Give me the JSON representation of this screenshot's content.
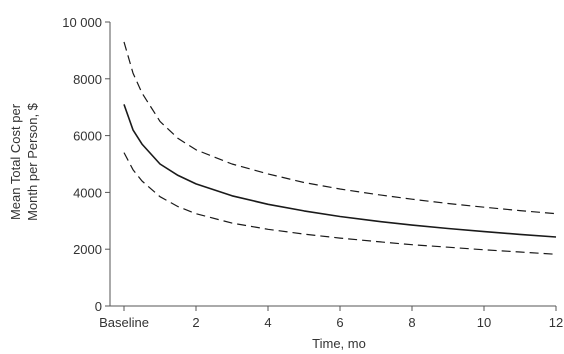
{
  "chart_data": {
    "type": "line",
    "title": "",
    "xlabel": "Time, mo",
    "ylabel_lines": [
      "Mean Total Cost per",
      "Month per Person, $"
    ],
    "xlim": [
      0,
      12
    ],
    "ylim": [
      0,
      10000
    ],
    "x_ticks": [
      0,
      2,
      4,
      6,
      8,
      10,
      12
    ],
    "x_tick_labels": [
      "Baseline",
      "2",
      "4",
      "6",
      "8",
      "10",
      "12"
    ],
    "y_ticks": [
      0,
      2000,
      4000,
      6000,
      8000,
      10000
    ],
    "y_tick_labels": [
      "0",
      "2000",
      "4000",
      "6000",
      "8000",
      "10 000"
    ],
    "grid": false,
    "series": [
      {
        "style": "solid",
        "x": [
          0,
          0.25,
          0.5,
          1,
          1.5,
          2,
          3,
          4,
          5,
          6,
          7,
          8,
          9,
          10,
          11,
          12
        ],
        "values": [
          7100,
          6200,
          5700,
          5000,
          4600,
          4300,
          3880,
          3580,
          3350,
          3150,
          2990,
          2850,
          2730,
          2620,
          2520,
          2430
        ]
      },
      {
        "style": "dashed",
        "x": [
          0,
          0.25,
          0.5,
          1,
          1.5,
          2,
          3,
          4,
          5,
          6,
          7,
          8,
          9,
          10,
          11,
          12
        ],
        "values": [
          9300,
          8200,
          7500,
          6500,
          5900,
          5500,
          5000,
          4650,
          4350,
          4120,
          3930,
          3760,
          3610,
          3480,
          3360,
          3250
        ]
      },
      {
        "style": "dashed",
        "x": [
          0,
          0.25,
          0.5,
          1,
          1.5,
          2,
          3,
          4,
          5,
          6,
          7,
          8,
          9,
          10,
          11,
          12
        ],
        "values": [
          5400,
          4800,
          4400,
          3850,
          3500,
          3250,
          2920,
          2700,
          2530,
          2390,
          2270,
          2160,
          2070,
          1980,
          1900,
          1820
        ]
      }
    ]
  }
}
